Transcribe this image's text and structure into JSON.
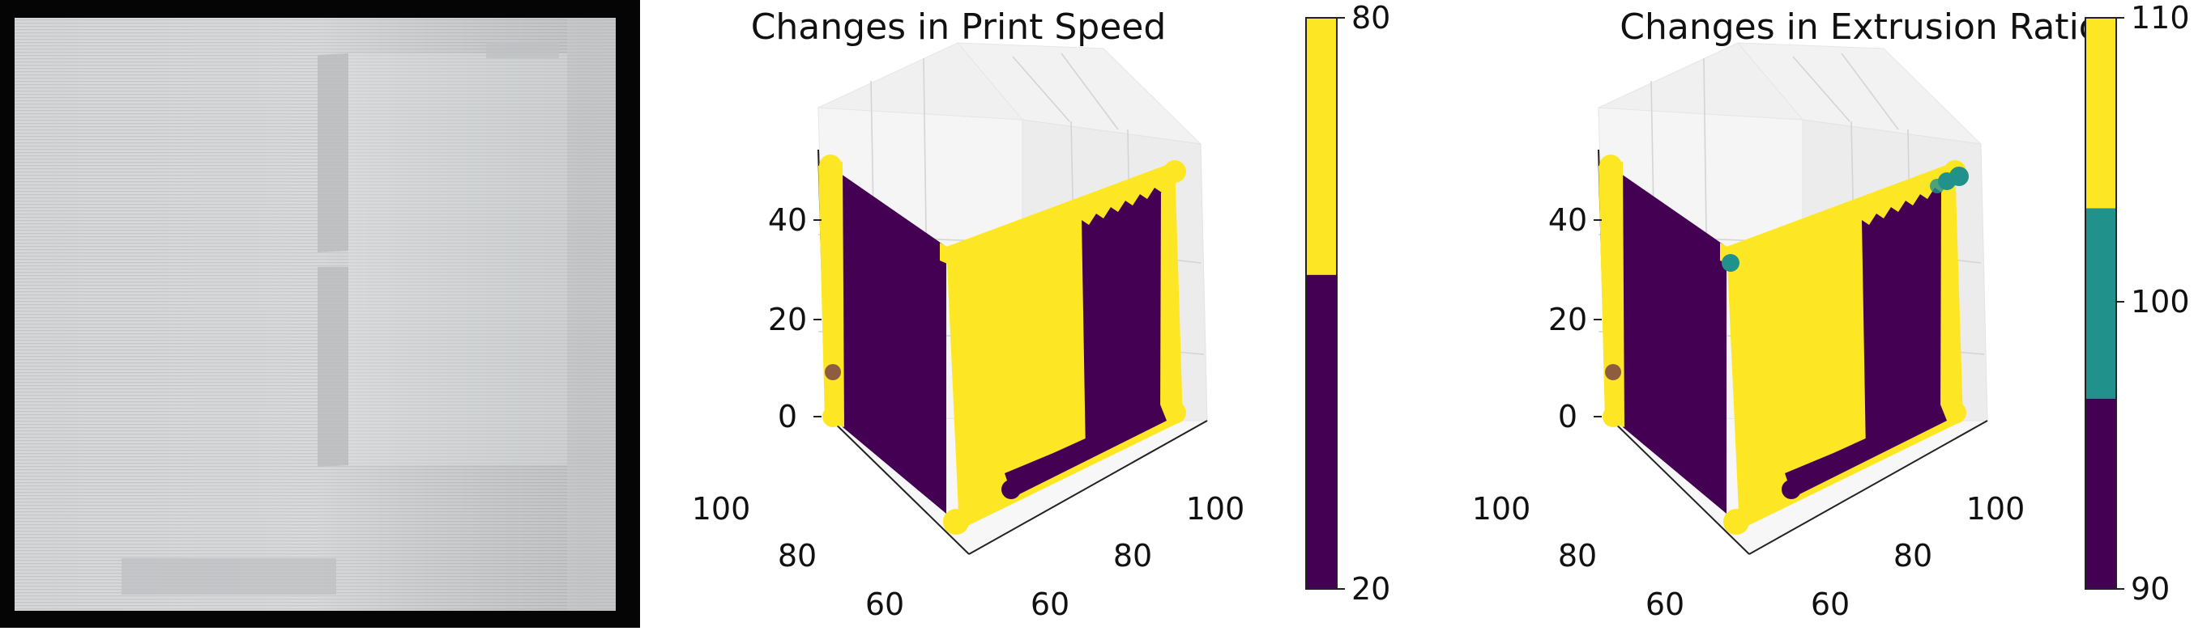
{
  "photo": {
    "subject": "3D-printed wall",
    "background": "#000000",
    "print_color": "#d5d7d8"
  },
  "chart_data": [
    {
      "type": "scatter",
      "projection": "3d",
      "title": "Changes in Print Speed",
      "z_ticks": [
        "0",
        "20",
        "40"
      ],
      "x_ticks": [
        "60",
        "80",
        "100"
      ],
      "y_ticks": [
        "100",
        "80",
        "60"
      ],
      "zlim": [
        0,
        55
      ],
      "colorbar": {
        "ticks": [
          "80",
          "20"
        ],
        "min": 20,
        "max": 80,
        "colors": [
          "#440154",
          "#fde725"
        ]
      },
      "series": [
        {
          "face": "left-wall",
          "value": 20,
          "color": "#440154"
        },
        {
          "face": "right-wall",
          "value": 80,
          "color": "#fde725"
        },
        {
          "face": "right-wall-band",
          "value": 20,
          "color": "#440154"
        },
        {
          "face": "edge-columns",
          "value": 80,
          "color": "#fde725"
        }
      ]
    },
    {
      "type": "scatter",
      "projection": "3d",
      "title": "Changes in Extrusion Ratio",
      "z_ticks": [
        "0",
        "20",
        "40"
      ],
      "x_ticks": [
        "60",
        "80",
        "100"
      ],
      "y_ticks": [
        "100",
        "80",
        "60"
      ],
      "zlim": [
        0,
        55
      ],
      "colorbar": {
        "ticks": [
          "110",
          "100",
          "90"
        ],
        "min": 90,
        "max": 110,
        "colors": [
          "#440154",
          "#21918c",
          "#fde725"
        ]
      },
      "series": [
        {
          "face": "left-wall",
          "value": 90,
          "color": "#440154"
        },
        {
          "face": "right-wall",
          "value": 110,
          "color": "#fde725"
        },
        {
          "face": "right-wall-band",
          "value": 90,
          "color": "#440154"
        },
        {
          "face": "edge-columns",
          "value": 110,
          "color": "#fde725"
        },
        {
          "face": "corner-points",
          "value": 100,
          "color": "#21918c"
        }
      ]
    }
  ]
}
